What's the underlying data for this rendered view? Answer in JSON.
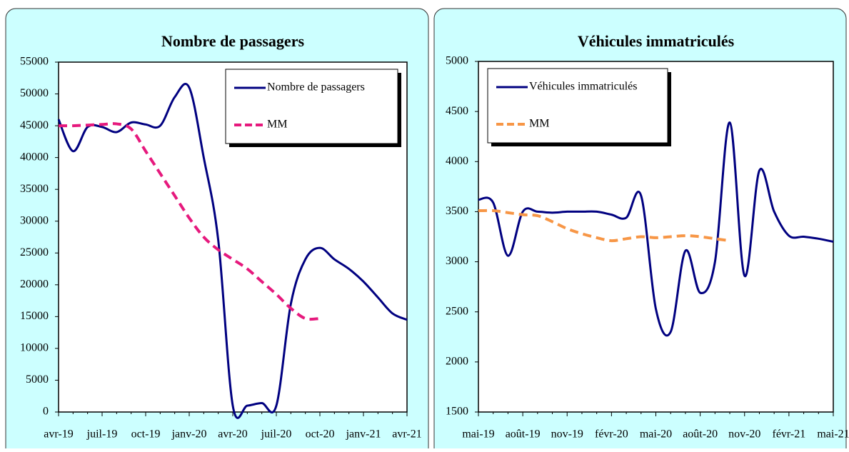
{
  "chart_data": [
    {
      "type": "line",
      "title": "Nombre de passagers",
      "categories": [
        "avr-19",
        null,
        null,
        "juil-19",
        null,
        null,
        "oct-19",
        null,
        null,
        "janv-20",
        null,
        null,
        "avr-20",
        null,
        null,
        "juil-20",
        null,
        null,
        "oct-20",
        null,
        null,
        "janv-21",
        null,
        null,
        "avr-21"
      ],
      "series": [
        {
          "name": "Nombre de passagers",
          "color": "#000080",
          "dashed": false,
          "values": [
            46000,
            41000,
            44800,
            44800,
            44000,
            45500,
            45200,
            45000,
            49500,
            51000,
            40000,
            27000,
            1000,
            1000,
            1400,
            1000,
            17000,
            24000,
            25800,
            24000,
            22500,
            20500,
            18000,
            15500,
            14500
          ]
        },
        {
          "name": "MM",
          "color": "#e6197d",
          "dashed": true,
          "values": [
            45000,
            45000,
            45100,
            45200,
            45300,
            44500,
            41000,
            37500,
            34000,
            30500,
            27500,
            25500,
            24000,
            22500,
            20500,
            18500,
            16300,
            14700,
            14700,
            null,
            null,
            null,
            null,
            null,
            null
          ]
        }
      ],
      "ylim": [
        0,
        55000
      ],
      "yticks": [
        0,
        5000,
        10000,
        15000,
        20000,
        25000,
        30000,
        35000,
        40000,
        45000,
        50000,
        55000
      ],
      "legend": "upper right"
    },
    {
      "type": "line",
      "title": "Véhicules immatriculés",
      "categories": [
        "mai-19",
        null,
        null,
        "août-19",
        null,
        null,
        "nov-19",
        null,
        null,
        "févr-20",
        null,
        null,
        "mai-20",
        null,
        null,
        "août-20",
        null,
        null,
        "nov-20",
        null,
        null,
        "févr-21",
        null,
        null,
        "mai-21"
      ],
      "series": [
        {
          "name": "Véhicules immatriculés",
          "color": "#000080",
          "dashed": false,
          "values": [
            3620,
            3590,
            3060,
            3500,
            3500,
            3490,
            3500,
            3500,
            3500,
            3470,
            3440,
            3660,
            2530,
            2300,
            3110,
            2690,
            3000,
            4390,
            2860,
            3910,
            3500,
            3260,
            3250,
            3230,
            3200
          ]
        },
        {
          "name": "MM",
          "color": "#f79646",
          "dashed": true,
          "values": [
            3510,
            3510,
            3490,
            3470,
            3460,
            3400,
            3330,
            3280,
            3240,
            3210,
            3230,
            3250,
            3240,
            3250,
            3260,
            3250,
            3230,
            3210,
            null,
            null,
            null,
            null,
            null,
            null,
            null
          ]
        }
      ],
      "ylim": [
        1500,
        5000
      ],
      "yticks": [
        1500,
        2000,
        2500,
        3000,
        3500,
        4000,
        4500,
        5000
      ],
      "legend": "upper left"
    }
  ]
}
